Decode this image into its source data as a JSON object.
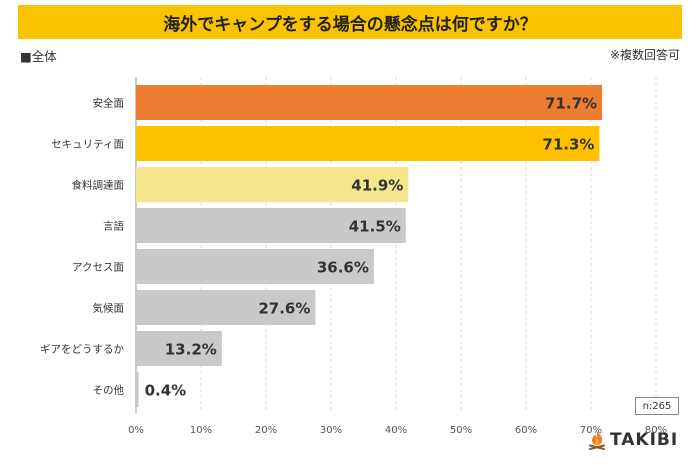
{
  "header": {
    "title": "海外でキャンプをする場合の懸念点は何ですか？",
    "subset_label": "■全体",
    "note": "※複数回答可"
  },
  "sample_size": "n:265",
  "brand": {
    "name": "TAKIBI",
    "icon": "campfire-icon"
  },
  "colors": {
    "title_bg": "#F9C300",
    "bar_first": "#ED7D31",
    "bar_second": "#FFC000",
    "bar_third": "#F5E68E",
    "bar_rest": "#C9C9C9",
    "grid": "#D9D9D9"
  },
  "chart_data": {
    "type": "bar",
    "orientation": "horizontal",
    "title": "海外でキャンプをする場合の懸念点は何ですか？",
    "categories": [
      "安全面",
      "セキュリティ面",
      "食料調達面",
      "言語",
      "アクセス面",
      "気候面",
      "ギアをどうするか",
      "その他"
    ],
    "values": [
      71.7,
      71.3,
      41.9,
      41.5,
      36.6,
      27.6,
      13.2,
      0.4
    ],
    "value_labels": [
      "71.7%",
      "71.3%",
      "41.9%",
      "41.5%",
      "36.6%",
      "27.6%",
      "13.2%",
      "0.4%"
    ],
    "xlim": [
      0,
      80
    ],
    "ticks": [
      0,
      10,
      20,
      30,
      40,
      50,
      60,
      70,
      80
    ],
    "tick_labels": [
      "0%",
      "10%",
      "20%",
      "30%",
      "40%",
      "50%",
      "60%",
      "70%",
      "80%"
    ],
    "xlabel": "",
    "ylabel": "",
    "grid": "vertical-dashed"
  }
}
